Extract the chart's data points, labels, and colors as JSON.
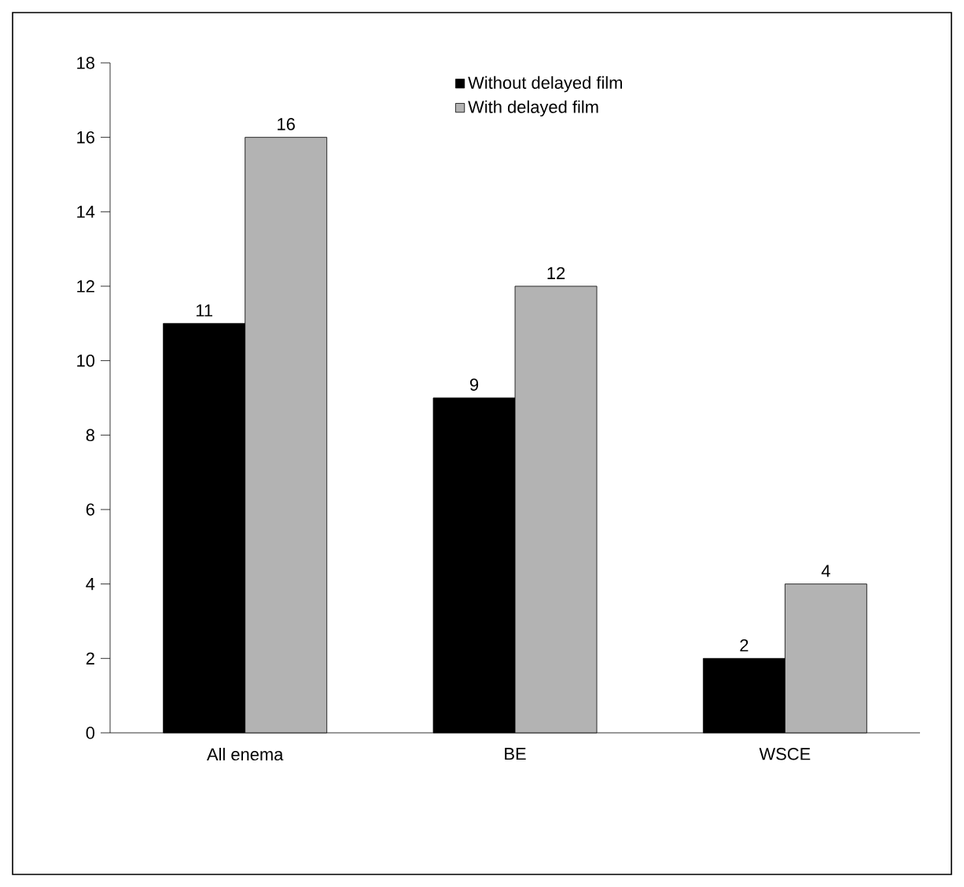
{
  "chart_data": {
    "type": "bar",
    "categories": [
      "All enema",
      "BE",
      "WSCE"
    ],
    "series": [
      {
        "name": "Without delayed film",
        "color": "#000000",
        "values": [
          11,
          9,
          2
        ]
      },
      {
        "name": "With delayed film",
        "color": "#b3b3b3",
        "values": [
          16,
          12,
          4
        ]
      }
    ],
    "ylim": [
      0,
      18
    ],
    "yticks": [
      0,
      2,
      4,
      6,
      8,
      10,
      12,
      14,
      16,
      18
    ],
    "data_labels": true,
    "legend": "top right",
    "grid": false
  }
}
